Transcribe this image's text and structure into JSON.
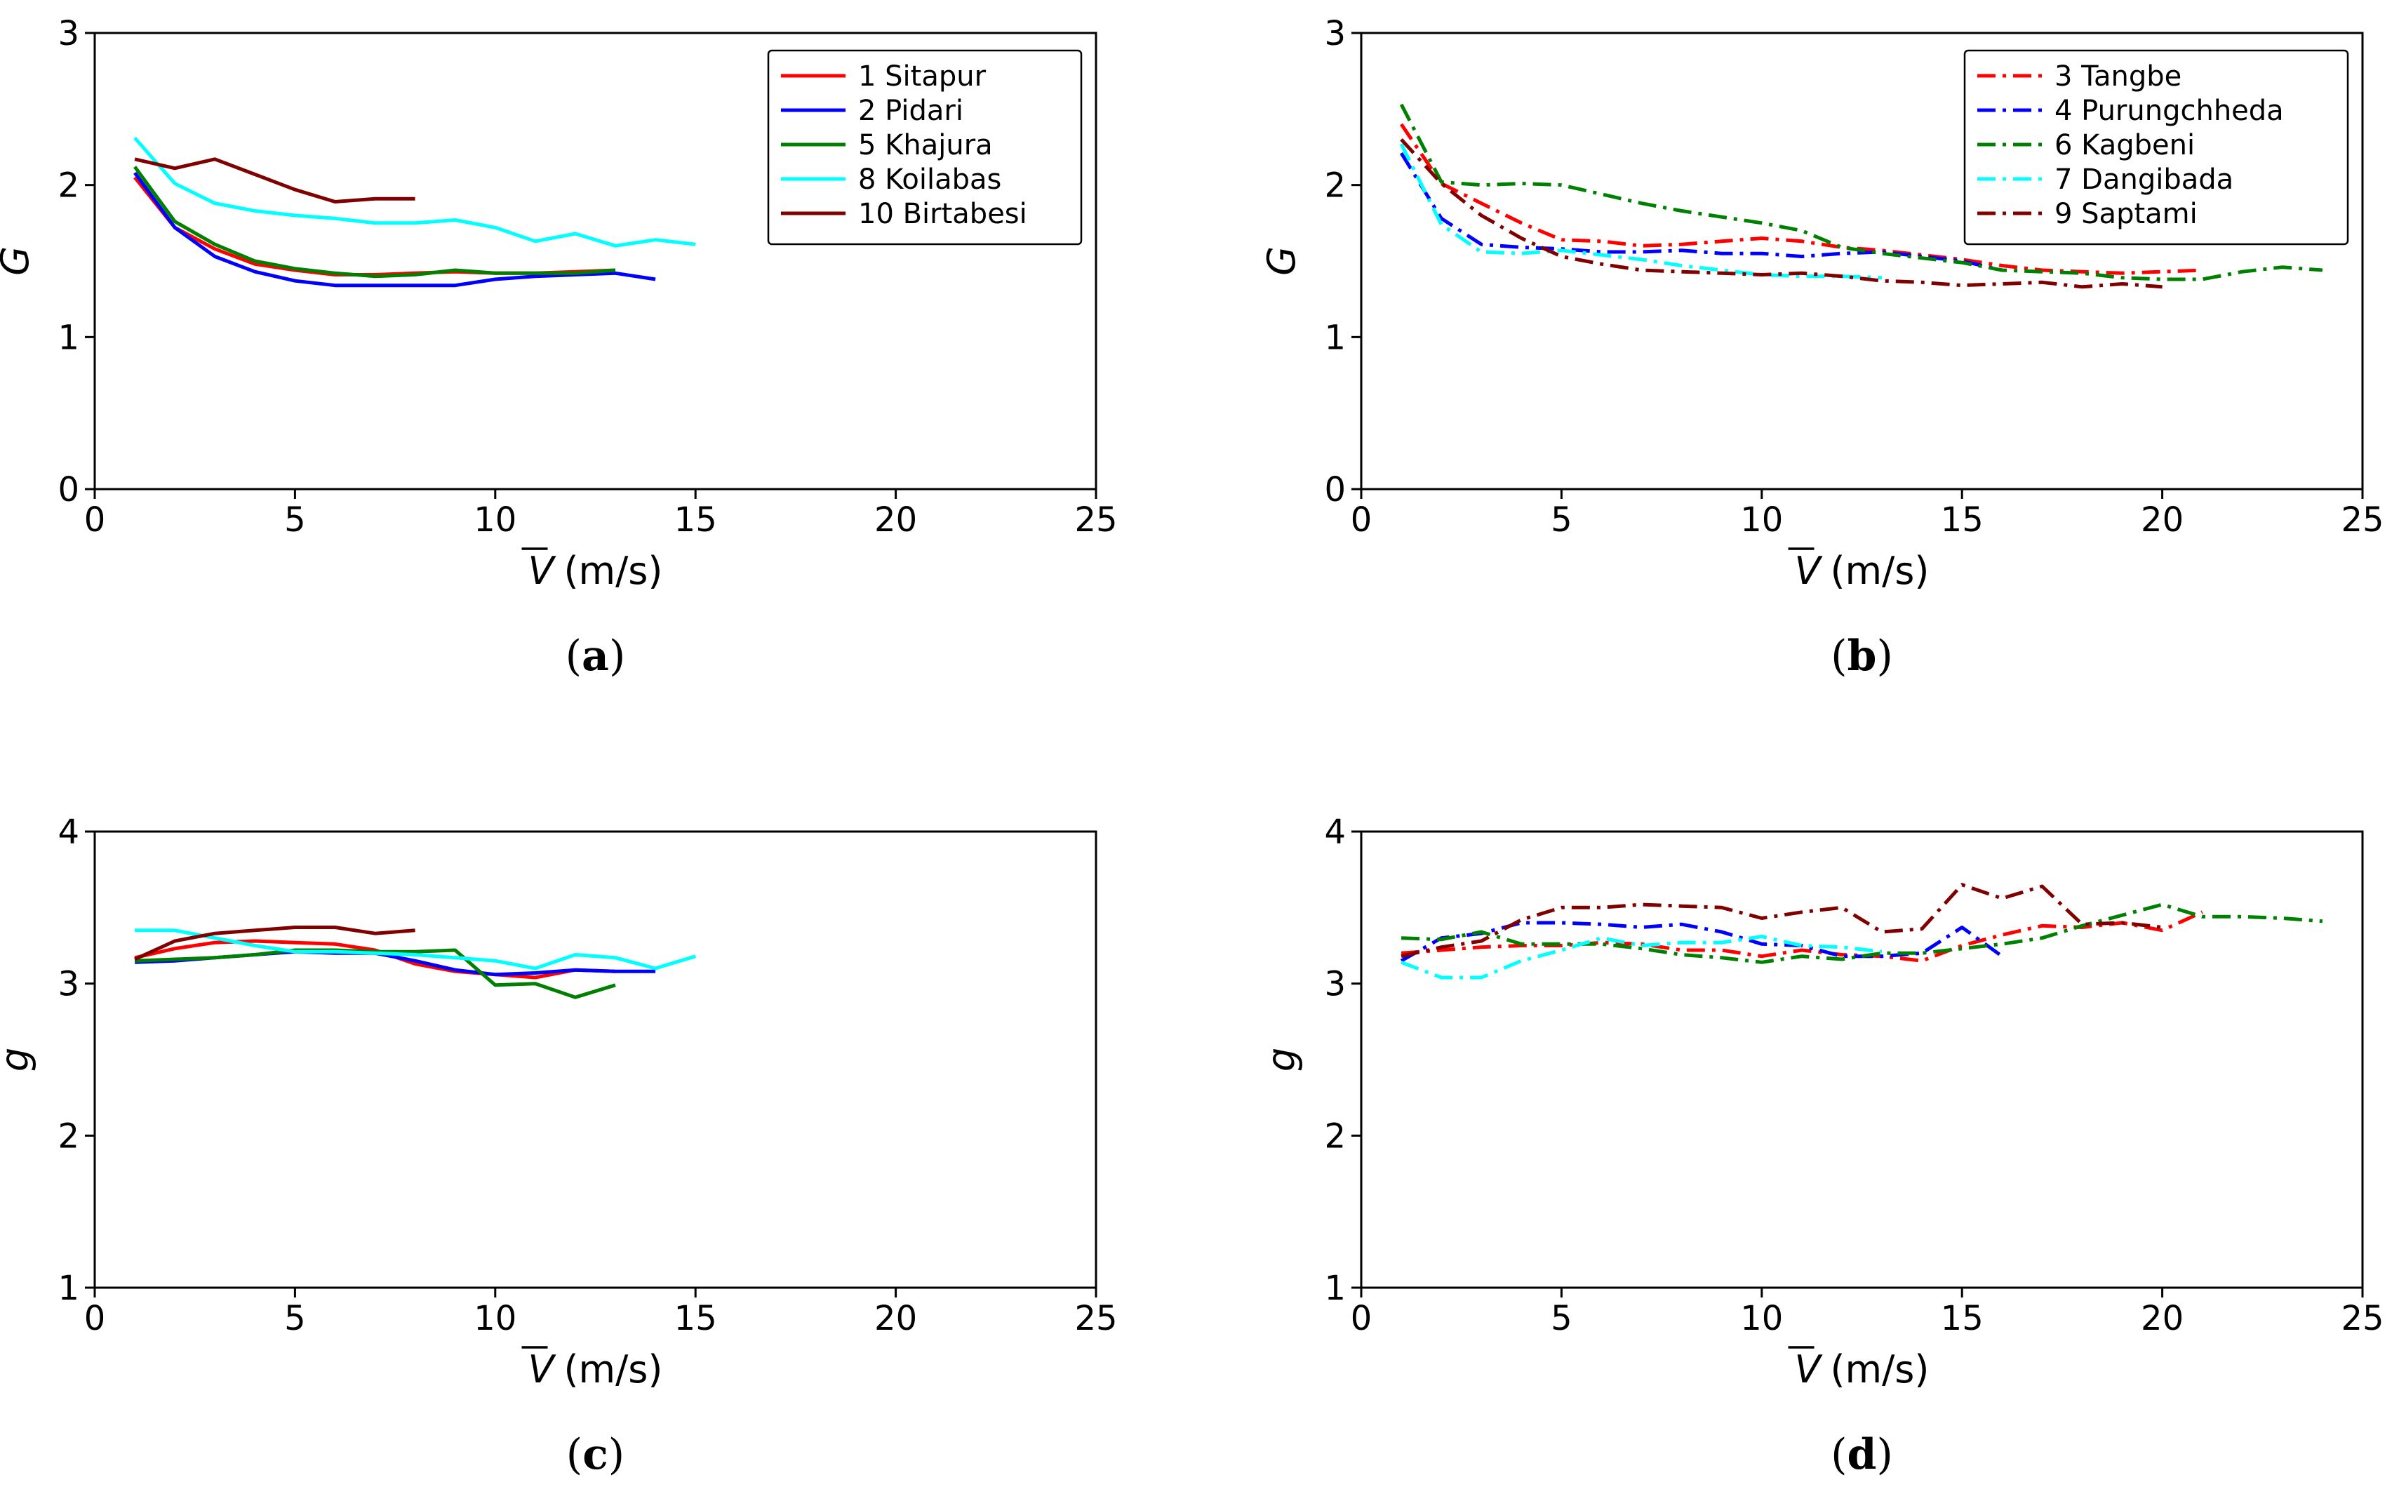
{
  "chart_data": [
    {
      "id": "a",
      "type": "line",
      "caption_letter": "a",
      "xlabel_symbol": "V",
      "xlabel_unit": "(m/s)",
      "ylabel": "G",
      "xlim": [
        0,
        25
      ],
      "ylim": [
        0,
        3
      ],
      "xticks": [
        0,
        5,
        10,
        15,
        20,
        25
      ],
      "yticks": [
        0,
        1,
        2,
        3
      ],
      "line_style": "solid",
      "legend_position": "top-right",
      "series": [
        {
          "name": "1 Sitapur",
          "color": "#ff0000",
          "x": [
            1,
            2,
            3,
            4,
            5,
            6,
            7,
            8,
            9,
            10,
            11,
            12,
            13
          ],
          "y": [
            2.05,
            1.72,
            1.58,
            1.48,
            1.44,
            1.41,
            1.41,
            1.42,
            1.43,
            1.42,
            1.42,
            1.43,
            1.44
          ]
        },
        {
          "name": "2 Pidari",
          "color": "#0000ff",
          "x": [
            1,
            2,
            3,
            4,
            5,
            6,
            7,
            8,
            9,
            10,
            11,
            12,
            13,
            14
          ],
          "y": [
            2.08,
            1.72,
            1.53,
            1.43,
            1.37,
            1.34,
            1.34,
            1.34,
            1.34,
            1.38,
            1.4,
            1.41,
            1.42,
            1.38
          ]
        },
        {
          "name": "5 Khajura",
          "color": "#008000",
          "x": [
            1,
            2,
            3,
            4,
            5,
            6,
            7,
            8,
            9,
            10,
            11,
            12,
            13
          ],
          "y": [
            2.12,
            1.76,
            1.61,
            1.5,
            1.45,
            1.42,
            1.4,
            1.41,
            1.44,
            1.42,
            1.42,
            1.42,
            1.44
          ]
        },
        {
          "name": "8 Koilabas",
          "color": "#00ffff",
          "x": [
            1,
            2,
            3,
            4,
            5,
            6,
            7,
            8,
            9,
            10,
            11,
            12,
            13,
            14,
            15
          ],
          "y": [
            2.31,
            2.01,
            1.88,
            1.83,
            1.8,
            1.78,
            1.75,
            1.75,
            1.77,
            1.72,
            1.63,
            1.68,
            1.6,
            1.64,
            1.61
          ]
        },
        {
          "name": "10 Birtabesi",
          "color": "#800000",
          "x": [
            1,
            2,
            3,
            4,
            5,
            6,
            7,
            8
          ],
          "y": [
            2.17,
            2.11,
            2.17,
            2.07,
            1.97,
            1.89,
            1.91,
            1.91
          ]
        }
      ]
    },
    {
      "id": "b",
      "type": "line",
      "caption_letter": "b",
      "xlabel_symbol": "V",
      "xlabel_unit": "(m/s)",
      "ylabel": "G",
      "xlim": [
        0,
        25
      ],
      "ylim": [
        0,
        3
      ],
      "xticks": [
        0,
        5,
        10,
        15,
        20,
        25
      ],
      "yticks": [
        0,
        1,
        2,
        3
      ],
      "line_style": "dashdot",
      "legend_position": "top-right",
      "series": [
        {
          "name": "3 Tangbe",
          "color": "#ff0000",
          "x": [
            1,
            2,
            3,
            4,
            5,
            6,
            7,
            8,
            9,
            10,
            11,
            12,
            13,
            14,
            15,
            16,
            17,
            18,
            19,
            20,
            21
          ],
          "y": [
            2.4,
            2.01,
            1.88,
            1.75,
            1.64,
            1.63,
            1.6,
            1.61,
            1.63,
            1.65,
            1.63,
            1.59,
            1.57,
            1.54,
            1.51,
            1.47,
            1.44,
            1.43,
            1.42,
            1.43,
            1.44
          ]
        },
        {
          "name": "4 Purungchheda",
          "color": "#0000ff",
          "x": [
            1,
            2,
            3,
            4,
            5,
            6,
            7,
            8,
            9,
            10,
            11,
            12,
            13,
            14,
            15,
            16
          ],
          "y": [
            2.21,
            1.78,
            1.61,
            1.59,
            1.58,
            1.56,
            1.56,
            1.57,
            1.55,
            1.55,
            1.53,
            1.55,
            1.56,
            1.53,
            1.5,
            1.44
          ]
        },
        {
          "name": "6 Kagbeni",
          "color": "#008000",
          "x": [
            1,
            2,
            3,
            4,
            5,
            6,
            7,
            8,
            9,
            10,
            11,
            12,
            13,
            14,
            15,
            16,
            17,
            18,
            19,
            20,
            21,
            22,
            23,
            24
          ],
          "y": [
            2.53,
            2.02,
            2.0,
            2.01,
            2.0,
            1.94,
            1.88,
            1.83,
            1.79,
            1.75,
            1.7,
            1.59,
            1.55,
            1.52,
            1.49,
            1.44,
            1.43,
            1.42,
            1.39,
            1.38,
            1.38,
            1.43,
            1.46,
            1.44
          ]
        },
        {
          "name": "7 Dangibada",
          "color": "#00ffff",
          "x": [
            1,
            2,
            3,
            4,
            5,
            6,
            7,
            8,
            9,
            10,
            11,
            12,
            13
          ],
          "y": [
            2.27,
            1.74,
            1.56,
            1.55,
            1.57,
            1.54,
            1.51,
            1.47,
            1.44,
            1.41,
            1.4,
            1.4,
            1.39
          ]
        },
        {
          "name": "9 Saptami",
          "color": "#800000",
          "x": [
            1,
            2,
            3,
            4,
            5,
            6,
            7,
            8,
            9,
            10,
            11,
            12,
            13,
            14,
            15,
            16,
            17,
            18,
            19,
            20
          ],
          "y": [
            2.3,
            2.01,
            1.8,
            1.65,
            1.53,
            1.48,
            1.44,
            1.43,
            1.42,
            1.41,
            1.42,
            1.4,
            1.37,
            1.36,
            1.34,
            1.35,
            1.36,
            1.33,
            1.35,
            1.33
          ]
        }
      ]
    },
    {
      "id": "c",
      "type": "line",
      "caption_letter": "c",
      "xlabel_symbol": "V",
      "xlabel_unit": "(m/s)",
      "ylabel": "g",
      "xlim": [
        0,
        25
      ],
      "ylim": [
        1,
        4
      ],
      "xticks": [
        0,
        5,
        10,
        15,
        20,
        25
      ],
      "yticks": [
        1,
        2,
        3,
        4
      ],
      "line_style": "solid",
      "series": [
        {
          "name": "1 Sitapur",
          "color": "#ff0000",
          "x": [
            1,
            2,
            3,
            4,
            5,
            6,
            7,
            8,
            9,
            10,
            11,
            12,
            13
          ],
          "y": [
            3.17,
            3.23,
            3.27,
            3.28,
            3.27,
            3.26,
            3.22,
            3.13,
            3.08,
            3.06,
            3.04,
            3.09,
            3.08
          ]
        },
        {
          "name": "2 Pidari",
          "color": "#0000ff",
          "x": [
            1,
            2,
            3,
            4,
            5,
            6,
            7,
            8,
            9,
            10,
            11,
            12,
            13,
            14
          ],
          "y": [
            3.14,
            3.15,
            3.17,
            3.19,
            3.21,
            3.2,
            3.2,
            3.15,
            3.09,
            3.06,
            3.07,
            3.09,
            3.08,
            3.08
          ]
        },
        {
          "name": "5 Khajura",
          "color": "#008000",
          "x": [
            1,
            2,
            3,
            4,
            5,
            6,
            7,
            8,
            9,
            10,
            11,
            12,
            13
          ],
          "y": [
            3.15,
            3.16,
            3.17,
            3.19,
            3.22,
            3.22,
            3.21,
            3.21,
            3.22,
            2.99,
            3.0,
            2.91,
            2.99
          ]
        },
        {
          "name": "8 Koilabas",
          "color": "#00ffff",
          "x": [
            1,
            2,
            3,
            4,
            5,
            6,
            7,
            8,
            9,
            10,
            11,
            12,
            13,
            14,
            15
          ],
          "y": [
            3.35,
            3.35,
            3.3,
            3.25,
            3.21,
            3.21,
            3.2,
            3.19,
            3.17,
            3.15,
            3.1,
            3.19,
            3.17,
            3.1,
            3.18
          ]
        },
        {
          "name": "10 Birtabesi",
          "color": "#800000",
          "x": [
            1,
            2,
            3,
            4,
            5,
            6,
            7,
            8
          ],
          "y": [
            3.16,
            3.28,
            3.33,
            3.35,
            3.37,
            3.37,
            3.33,
            3.35
          ]
        }
      ]
    },
    {
      "id": "d",
      "type": "line",
      "caption_letter": "d",
      "xlabel_symbol": "V",
      "xlabel_unit": "(m/s)",
      "ylabel": "g",
      "xlim": [
        0,
        25
      ],
      "ylim": [
        1,
        4
      ],
      "xticks": [
        0,
        5,
        10,
        15,
        20,
        25
      ],
      "yticks": [
        1,
        2,
        3,
        4
      ],
      "line_style": "dashdot",
      "series": [
        {
          "name": "3 Tangbe",
          "color": "#ff0000",
          "x": [
            1,
            2,
            3,
            4,
            5,
            6,
            7,
            8,
            9,
            10,
            11,
            12,
            13,
            14,
            15,
            16,
            17,
            18,
            19,
            20,
            21
          ],
          "y": [
            3.2,
            3.22,
            3.24,
            3.25,
            3.25,
            3.27,
            3.26,
            3.22,
            3.22,
            3.18,
            3.22,
            3.19,
            3.18,
            3.15,
            3.25,
            3.32,
            3.38,
            3.37,
            3.4,
            3.35,
            3.47
          ]
        },
        {
          "name": "4 Purungchheda",
          "color": "#0000ff",
          "x": [
            1,
            2,
            3,
            4,
            5,
            6,
            7,
            8,
            9,
            10,
            11,
            12,
            13,
            14,
            15,
            16
          ],
          "y": [
            3.15,
            3.3,
            3.33,
            3.4,
            3.4,
            3.39,
            3.37,
            3.39,
            3.34,
            3.26,
            3.25,
            3.18,
            3.18,
            3.2,
            3.37,
            3.18
          ]
        },
        {
          "name": "6 Kagbeni",
          "color": "#008000",
          "x": [
            1,
            2,
            3,
            4,
            5,
            6,
            7,
            8,
            9,
            10,
            11,
            12,
            13,
            14,
            15,
            16,
            17,
            18,
            19,
            20,
            21,
            22,
            23,
            24
          ],
          "y": [
            3.3,
            3.29,
            3.34,
            3.26,
            3.26,
            3.26,
            3.23,
            3.19,
            3.17,
            3.14,
            3.18,
            3.16,
            3.2,
            3.2,
            3.23,
            3.26,
            3.3,
            3.38,
            3.45,
            3.52,
            3.44,
            3.44,
            3.43,
            3.41
          ]
        },
        {
          "name": "7 Dangibada",
          "color": "#00ffff",
          "x": [
            1,
            2,
            3,
            4,
            5,
            6,
            7,
            8,
            9,
            10,
            11,
            12,
            13
          ],
          "y": [
            3.14,
            3.04,
            3.04,
            3.15,
            3.22,
            3.3,
            3.25,
            3.27,
            3.27,
            3.31,
            3.25,
            3.24,
            3.21
          ]
        },
        {
          "name": "9 Saptami",
          "color": "#800000",
          "x": [
            1,
            2,
            3,
            4,
            5,
            6,
            7,
            8,
            9,
            10,
            11,
            12,
            13,
            14,
            15,
            16,
            17,
            18,
            19,
            20
          ],
          "y": [
            3.18,
            3.24,
            3.28,
            3.42,
            3.5,
            3.5,
            3.52,
            3.51,
            3.5,
            3.43,
            3.47,
            3.5,
            3.34,
            3.36,
            3.65,
            3.56,
            3.64,
            3.39,
            3.4,
            3.37
          ]
        }
      ]
    }
  ]
}
